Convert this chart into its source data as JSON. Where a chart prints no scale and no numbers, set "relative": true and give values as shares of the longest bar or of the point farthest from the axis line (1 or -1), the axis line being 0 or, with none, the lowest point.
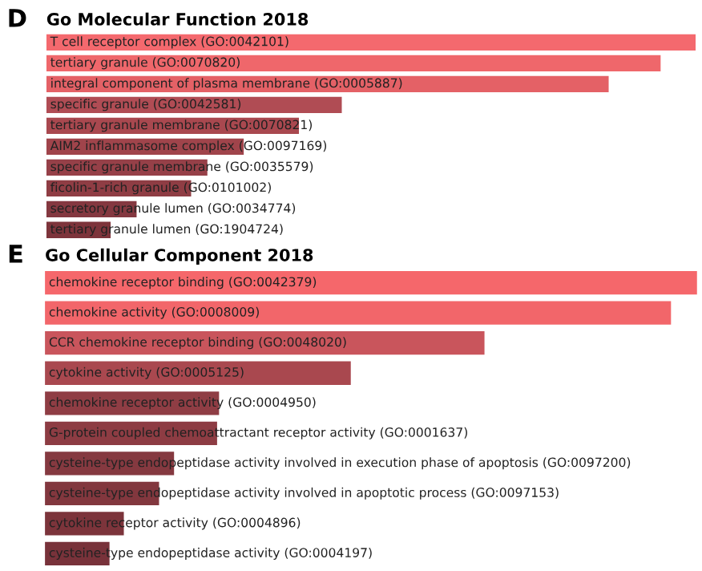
{
  "chart_data": [
    {
      "type": "bar",
      "orientation": "horizontal",
      "relative": true,
      "title": "Go Molecular Function 2018",
      "annotations": [
        "D"
      ],
      "categories": [
        "T cell receptor complex (GO:0042101)",
        "tertiary granule (GO:0070820)",
        "integral component of plasma membrane (GO:0005887)",
        "specific granule (GO:0042581)",
        "tertiary granule membrane (GO:0070821)",
        "AIM2 inflammasome complex (GO:0097169)",
        "specific granule membrane (GO:0035579)",
        "ficolin-1-rich granule (GO:0101002)",
        "secretory granule lumen (GO:0034774)",
        "tertiary granule lumen (GO:1904724)"
      ],
      "values": [
        1,
        0.946,
        0.866,
        0.455,
        0.389,
        0.304,
        0.248,
        0.223,
        0.139,
        0.099
      ],
      "colors": [
        "#f4696e",
        "#ef676b",
        "#e46166",
        "#b04c54",
        "#a9484f",
        "#a0444b",
        "#964048",
        "#8f3d44",
        "#843840",
        "#7d343b"
      ]
    },
    {
      "type": "bar",
      "orientation": "horizontal",
      "relative": true,
      "title": "Go Cellular Component 2018",
      "annotations": [
        "E"
      ],
      "categories": [
        "chemokine receptor binding (GO:0042379)",
        "chemokine activity (GO:0008009)",
        "CCR chemokine receptor binding (GO:0048020)",
        "cytokine activity (GO:0005125)",
        "chemokine receptor activity (GO:0004950)",
        "G-protein coupled chemoattractant receptor activity (GO:0001637)",
        "cysteine-type endopeptidase activity involved in execution phase of apoptosis (GO:0097200)",
        "cysteine-type endopeptidase activity involved in apoptotic process (GO:0097153)",
        "cytokine receptor activity (GO:0004896)",
        "cysteine-type endopeptidase activity (GO:0004197)"
      ],
      "values": [
        1,
        0.96,
        0.674,
        0.469,
        0.267,
        0.264,
        0.198,
        0.175,
        0.121,
        0.099
      ],
      "colors": [
        "#f5676b",
        "#f2666a",
        "#c9555c",
        "#a9484f",
        "#8f3d44",
        "#8d3c43",
        "#853940",
        "#82373e",
        "#7c343b",
        "#78323a"
      ]
    }
  ]
}
